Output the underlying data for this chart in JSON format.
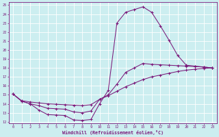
{
  "xlabel": "Windchill (Refroidissement éolien,°C)",
  "bg_color": "#cceef0",
  "line_color": "#7b1a7b",
  "grid_color": "#ffffff",
  "xlim": [
    -0.5,
    23.5
  ],
  "ylim": [
    11.8,
    25.3
  ],
  "xticks": [
    0,
    1,
    2,
    3,
    4,
    5,
    6,
    7,
    8,
    9,
    10,
    11,
    12,
    13,
    14,
    15,
    16,
    17,
    18,
    19,
    20,
    21,
    22,
    23
  ],
  "yticks": [
    12,
    13,
    14,
    15,
    16,
    17,
    18,
    19,
    20,
    21,
    22,
    23,
    24,
    25
  ],
  "curve1_x": [
    0,
    1,
    2,
    3,
    4,
    5,
    6,
    7,
    8,
    9,
    10,
    11,
    12,
    13,
    14,
    15,
    16,
    17,
    18,
    19,
    20,
    21,
    22,
    23
  ],
  "curve1_y": [
    15.1,
    14.3,
    14.0,
    13.3,
    12.8,
    12.75,
    12.7,
    12.2,
    12.15,
    12.25,
    14.0,
    15.5,
    23.0,
    24.2,
    24.5,
    24.8,
    24.2,
    22.7,
    21.1,
    19.4,
    18.3,
    18.2,
    18.1,
    18.0
  ],
  "curve2_x": [
    0,
    1,
    2,
    3,
    4,
    5,
    6,
    7,
    8,
    9,
    10,
    11,
    12,
    13,
    14,
    15,
    16,
    17,
    18,
    19,
    20,
    21,
    22,
    23
  ],
  "curve2_y": [
    15.1,
    14.3,
    14.0,
    13.8,
    13.5,
    13.45,
    13.4,
    13.1,
    13.0,
    13.2,
    14.5,
    15.0,
    16.2,
    17.5,
    18.0,
    18.5,
    18.4,
    18.35,
    18.3,
    18.25,
    18.2,
    18.15,
    18.1,
    18.0
  ],
  "curve3_x": [
    0,
    1,
    2,
    3,
    4,
    5,
    6,
    7,
    8,
    9,
    10,
    11,
    12,
    13,
    14,
    15,
    16,
    17,
    18,
    19,
    20,
    21,
    22,
    23
  ],
  "curve3_y": [
    15.1,
    14.35,
    14.2,
    14.1,
    14.0,
    13.95,
    13.9,
    13.85,
    13.8,
    13.9,
    14.5,
    14.9,
    15.4,
    15.9,
    16.3,
    16.7,
    17.0,
    17.2,
    17.4,
    17.6,
    17.75,
    17.85,
    17.95,
    18.0
  ]
}
